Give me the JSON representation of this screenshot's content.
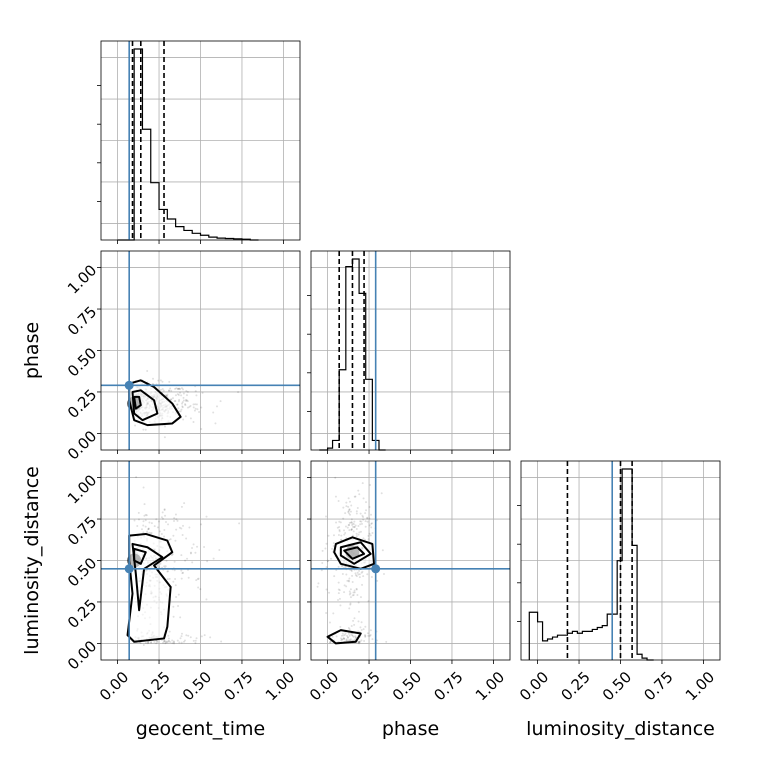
{
  "chart_data": {
    "type": "corner",
    "parameters": [
      "geocent_time",
      "phase",
      "luminosity_distance"
    ],
    "range": [
      -0.1,
      1.1
    ],
    "tick_values": [
      0.0,
      0.25,
      0.5,
      0.75,
      1.0
    ],
    "tick_labels": [
      "0.00",
      "0.25",
      "0.50",
      "0.75",
      "1.00"
    ],
    "axis_labels": {
      "geocent_time": "geocent_time",
      "phase": "phase",
      "luminosity_distance": "luminosity_distance"
    },
    "grid": true,
    "colors": {
      "truth": "#4682b4",
      "histogram": "#000000",
      "quantile": "#000000",
      "samples": "#000000"
    },
    "truths": {
      "geocent_time": 0.07,
      "phase": 0.29,
      "luminosity_distance": 0.45
    },
    "quantiles": {
      "geocent_time": [
        0.09,
        0.14,
        0.28
      ],
      "phase": [
        0.07,
        0.15,
        0.22
      ],
      "luminosity_distance": [
        0.18,
        0.5,
        0.57
      ]
    },
    "histograms": {
      "geocent_time": {
        "edges": [
          0.0,
          0.05,
          0.1,
          0.15,
          0.2,
          0.25,
          0.3,
          0.35,
          0.4,
          0.45,
          0.5,
          0.55,
          0.6,
          0.65,
          0.7,
          0.75,
          0.8,
          0.85
        ],
        "heights": [
          0.0,
          0.0,
          1.0,
          0.58,
          0.3,
          0.16,
          0.11,
          0.07,
          0.05,
          0.035,
          0.025,
          0.015,
          0.01,
          0.008,
          0.006,
          0.004,
          0.0
        ]
      },
      "phase": {
        "edges": [
          -0.05,
          0.0,
          0.03,
          0.07,
          0.11,
          0.15,
          0.19,
          0.23,
          0.27,
          0.31,
          0.35
        ],
        "heights": [
          0.0,
          0.01,
          0.05,
          0.42,
          0.96,
          1.0,
          0.82,
          0.37,
          0.05,
          0.0
        ]
      },
      "luminosity_distance": {
        "edges": [
          -0.05,
          0.0,
          0.03,
          0.06,
          0.09,
          0.12,
          0.15,
          0.18,
          0.21,
          0.24,
          0.27,
          0.3,
          0.33,
          0.36,
          0.39,
          0.42,
          0.45,
          0.48,
          0.51,
          0.54,
          0.57,
          0.6,
          0.63,
          0.66,
          0.7
        ],
        "heights": [
          0.25,
          0.2,
          0.1,
          0.11,
          0.12,
          0.13,
          0.13,
          0.14,
          0.15,
          0.14,
          0.15,
          0.15,
          0.16,
          0.17,
          0.18,
          0.24,
          0.24,
          0.52,
          1.0,
          1.0,
          0.6,
          0.03,
          0.01,
          0.0
        ]
      }
    },
    "pairs": [
      {
        "x": "geocent_time",
        "y": "phase",
        "density_peak": [
          0.1,
          0.18
        ],
        "contours": [
          [
            [
              0.07,
              0.3
            ],
            [
              0.14,
              0.32
            ],
            [
              0.22,
              0.28
            ],
            [
              0.33,
              0.18
            ],
            [
              0.38,
              0.1
            ],
            [
              0.33,
              0.06
            ],
            [
              0.18,
              0.05
            ],
            [
              0.1,
              0.08
            ],
            [
              0.07,
              0.2
            ]
          ],
          [
            [
              0.09,
              0.25
            ],
            [
              0.14,
              0.26
            ],
            [
              0.22,
              0.2
            ],
            [
              0.24,
              0.12
            ],
            [
              0.15,
              0.08
            ],
            [
              0.1,
              0.12
            ]
          ],
          [
            [
              0.1,
              0.22
            ],
            [
              0.13,
              0.22
            ],
            [
              0.14,
              0.17
            ],
            [
              0.11,
              0.15
            ]
          ]
        ]
      },
      {
        "x": "geocent_time",
        "y": "luminosity_distance",
        "density_peak": [
          0.1,
          0.5
        ],
        "contours": [
          [
            [
              0.07,
              0.65
            ],
            [
              0.17,
              0.66
            ],
            [
              0.3,
              0.62
            ],
            [
              0.33,
              0.55
            ],
            [
              0.22,
              0.47
            ],
            [
              0.32,
              0.34
            ],
            [
              0.3,
              0.1
            ],
            [
              0.28,
              0.03
            ],
            [
              0.1,
              0.01
            ],
            [
              0.06,
              0.05
            ],
            [
              0.09,
              0.3
            ],
            [
              0.07,
              0.5
            ]
          ],
          [
            [
              0.09,
              0.6
            ],
            [
              0.18,
              0.58
            ],
            [
              0.27,
              0.52
            ],
            [
              0.16,
              0.45
            ],
            [
              0.13,
              0.2
            ],
            [
              0.11,
              0.42
            ]
          ],
          [
            [
              0.1,
              0.57
            ],
            [
              0.17,
              0.55
            ],
            [
              0.14,
              0.48
            ],
            [
              0.1,
              0.5
            ]
          ]
        ]
      },
      {
        "x": "phase",
        "y": "luminosity_distance",
        "density_peak": [
          0.15,
          0.55
        ],
        "contours": [
          [
            [
              0.05,
              0.6
            ],
            [
              0.15,
              0.64
            ],
            [
              0.27,
              0.6
            ],
            [
              0.28,
              0.48
            ],
            [
              0.2,
              0.45
            ],
            [
              0.08,
              0.48
            ],
            [
              0.04,
              0.55
            ]
          ],
          [
            [
              0.08,
              0.58
            ],
            [
              0.2,
              0.61
            ],
            [
              0.26,
              0.54
            ],
            [
              0.16,
              0.48
            ],
            [
              0.08,
              0.53
            ]
          ],
          [
            [
              0.1,
              0.56
            ],
            [
              0.18,
              0.58
            ],
            [
              0.22,
              0.54
            ],
            [
              0.15,
              0.51
            ]
          ],
          [
            [
              0.0,
              0.04
            ],
            [
              0.08,
              0.08
            ],
            [
              0.2,
              0.06
            ],
            [
              0.17,
              0.01
            ],
            [
              0.05,
              0.0
            ]
          ]
        ]
      }
    ]
  }
}
